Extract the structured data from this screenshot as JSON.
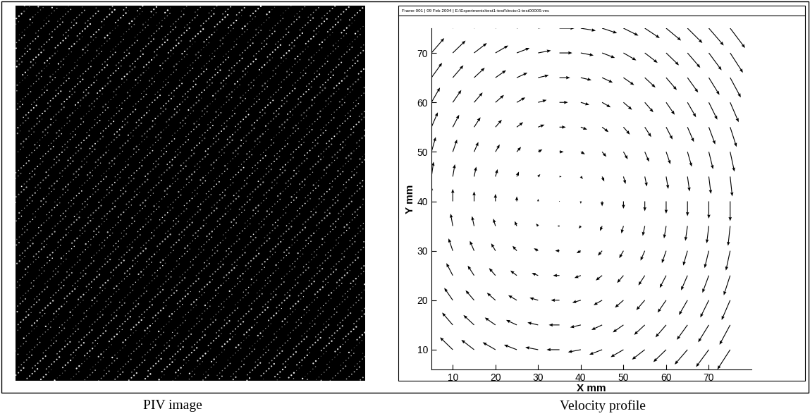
{
  "chart_data": {
    "type": "quiver",
    "x_label": "X mm",
    "y_label": "Y mm",
    "x": [
      5,
      10,
      15,
      20,
      25,
      30,
      35,
      40,
      45,
      50,
      55,
      60,
      65,
      70,
      75
    ],
    "y": [
      10,
      15,
      20,
      25,
      30,
      35,
      40,
      45,
      50,
      55,
      60,
      65,
      70,
      75
    ],
    "u": [
      [
        -3.0,
        -3.0,
        -3.0,
        -3.0,
        -3.0,
        -3.0,
        -3.0,
        -3.0,
        -3.0,
        -3.0,
        -3.0,
        -3.0,
        -3.0,
        -3.0,
        -3.0
      ],
      [
        -2.5,
        -2.5,
        -2.5,
        -2.5,
        -2.5,
        -2.5,
        -2.5,
        -2.5,
        -2.5,
        -2.5,
        -2.5,
        -2.5,
        -2.5,
        -2.5,
        -2.5
      ],
      [
        -2.0,
        -2.0,
        -2.0,
        -2.0,
        -2.0,
        -2.0,
        -2.0,
        -2.0,
        -2.0,
        -2.0,
        -2.0,
        -2.0,
        -2.0,
        -2.0,
        -2.0
      ],
      [
        -1.5,
        -1.5,
        -1.5,
        -1.5,
        -1.5,
        -1.5,
        -1.5,
        -1.5,
        -1.5,
        -1.5,
        -1.5,
        -1.5,
        -1.5,
        -1.5,
        -1.5
      ],
      [
        -1.0,
        -1.0,
        -1.0,
        -1.0,
        -1.0,
        -1.0,
        -1.0,
        -1.0,
        -1.0,
        -1.0,
        -1.0,
        -1.0,
        -1.0,
        -1.0,
        -1.0
      ],
      [
        -0.5,
        -0.5,
        -0.5,
        -0.5,
        -0.5,
        -0.5,
        -0.5,
        -0.5,
        -0.5,
        -0.5,
        -0.5,
        -0.5,
        -0.5,
        -0.5,
        -0.5
      ],
      [
        0.0,
        0.0,
        0.0,
        0.0,
        0.0,
        0.0,
        0.0,
        0.0,
        0.0,
        0.0,
        0.0,
        0.0,
        0.0,
        0.0,
        0.0
      ],
      [
        0.5,
        0.5,
        0.5,
        0.5,
        0.5,
        0.5,
        0.5,
        0.5,
        0.5,
        0.5,
        0.5,
        0.5,
        0.5,
        0.5,
        0.5
      ],
      [
        1.0,
        1.0,
        1.0,
        1.0,
        1.0,
        1.0,
        1.0,
        1.0,
        1.0,
        1.0,
        1.0,
        1.0,
        1.0,
        1.0,
        1.0
      ],
      [
        1.5,
        1.5,
        1.5,
        1.5,
        1.5,
        1.5,
        1.5,
        1.5,
        1.5,
        1.5,
        1.5,
        1.5,
        1.5,
        1.5,
        1.5
      ],
      [
        2.0,
        2.0,
        2.0,
        2.0,
        2.0,
        2.0,
        2.0,
        2.0,
        2.0,
        2.0,
        2.0,
        2.0,
        2.0,
        2.0,
        2.0
      ],
      [
        2.5,
        2.5,
        2.5,
        2.5,
        2.5,
        2.5,
        2.5,
        2.5,
        2.5,
        2.5,
        2.5,
        2.5,
        2.5,
        2.5,
        2.5
      ],
      [
        3.0,
        3.0,
        3.0,
        3.0,
        3.0,
        3.0,
        3.0,
        3.0,
        3.0,
        3.0,
        3.0,
        3.0,
        3.0,
        3.0,
        3.0
      ],
      [
        3.5,
        3.5,
        3.5,
        3.5,
        3.5,
        3.5,
        3.5,
        3.5,
        3.5,
        3.5,
        3.5,
        3.5,
        3.5,
        3.5,
        3.5
      ]
    ],
    "v": [
      [
        3.0,
        2.5,
        2.0,
        1.5,
        1.0,
        0.5,
        0.0,
        -0.5,
        -1.0,
        -1.5,
        -2.0,
        -2.5,
        -3.0,
        -3.5,
        -4.0
      ],
      [
        3.0,
        2.5,
        2.0,
        1.5,
        1.0,
        0.5,
        0.0,
        -0.5,
        -1.0,
        -1.5,
        -2.0,
        -2.5,
        -3.0,
        -3.5,
        -4.0
      ],
      [
        3.0,
        2.5,
        2.0,
        1.5,
        1.0,
        0.5,
        0.0,
        -0.5,
        -1.0,
        -1.5,
        -2.0,
        -2.5,
        -3.0,
        -3.5,
        -4.0
      ],
      [
        3.0,
        2.5,
        2.0,
        1.5,
        1.0,
        0.5,
        0.0,
        -0.5,
        -1.0,
        -1.5,
        -2.0,
        -2.5,
        -3.0,
        -3.5,
        -4.0
      ],
      [
        3.0,
        2.5,
        2.0,
        1.5,
        1.0,
        0.5,
        0.0,
        -0.5,
        -1.0,
        -1.5,
        -2.0,
        -2.5,
        -3.0,
        -3.5,
        -4.0
      ],
      [
        3.0,
        2.5,
        2.0,
        1.5,
        1.0,
        0.5,
        0.0,
        -0.5,
        -1.0,
        -1.5,
        -2.0,
        -2.5,
        -3.0,
        -3.5,
        -4.0
      ],
      [
        3.0,
        2.5,
        2.0,
        1.5,
        1.0,
        0.5,
        0.0,
        -0.5,
        -1.0,
        -1.5,
        -2.0,
        -2.5,
        -3.0,
        -3.5,
        -4.0
      ],
      [
        3.0,
        2.5,
        2.0,
        1.5,
        1.0,
        0.5,
        0.0,
        -0.5,
        -1.0,
        -1.5,
        -2.0,
        -2.5,
        -3.0,
        -3.5,
        -4.0
      ],
      [
        3.0,
        2.5,
        2.0,
        1.5,
        1.0,
        0.5,
        0.0,
        -0.5,
        -1.0,
        -1.5,
        -2.0,
        -2.5,
        -3.0,
        -3.5,
        -4.0
      ],
      [
        3.0,
        2.5,
        2.0,
        1.5,
        1.0,
        0.5,
        0.0,
        -0.5,
        -1.0,
        -1.5,
        -2.0,
        -2.5,
        -3.0,
        -3.5,
        -4.0
      ],
      [
        3.0,
        2.5,
        2.0,
        1.5,
        1.0,
        0.5,
        0.0,
        -0.5,
        -1.0,
        -1.5,
        -2.0,
        -2.5,
        -3.0,
        -3.5,
        -4.0
      ],
      [
        3.0,
        2.5,
        2.0,
        1.5,
        1.0,
        0.5,
        0.0,
        -0.5,
        -1.0,
        -1.5,
        -2.0,
        -2.5,
        -3.0,
        -3.5,
        -4.0
      ],
      [
        3.0,
        2.5,
        2.0,
        1.5,
        1.0,
        0.5,
        0.0,
        -0.5,
        -1.0,
        -1.5,
        -2.0,
        -2.5,
        -3.0,
        -3.5,
        -4.0
      ],
      [
        3.0,
        2.5,
        2.0,
        1.5,
        1.0,
        0.5,
        0.0,
        -0.5,
        -1.0,
        -1.5,
        -2.0,
        -2.5,
        -3.0,
        -3.5,
        -4.0
      ]
    ],
    "color": "#000000",
    "xlim": [
      5,
      80
    ],
    "ylim": [
      6,
      75
    ],
    "xticks": [
      10,
      20,
      30,
      40,
      50,
      60,
      70
    ],
    "yticks": [
      10,
      20,
      30,
      40,
      50,
      60,
      70
    ]
  },
  "header": "Frame 001 | 09 Feb 2004 | E:\\Experiments\\test1-test\\Vector1-test00009.vec",
  "captions": [
    "PIV image",
    "Velocity profile"
  ]
}
